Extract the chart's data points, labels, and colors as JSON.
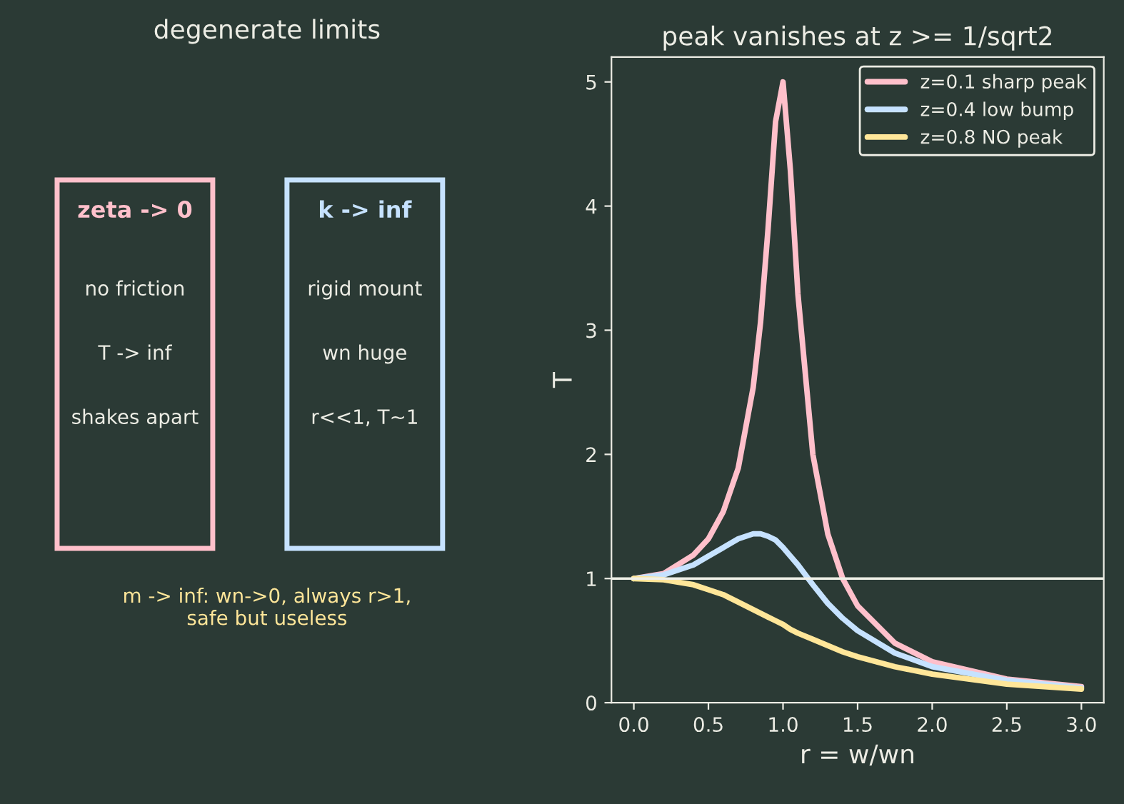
{
  "chart_data": [
    {
      "type": "other",
      "title": "degenerate limits",
      "annotations": [
        "zeta -> 0",
        "no friction",
        "T -> inf",
        "shakes apart",
        "k -> inf",
        "rigid mount",
        "wn huge",
        "r<<1, T~1",
        "m -> inf: wn->0, always r>1,\nsafe but useless"
      ],
      "colors": [
        "#ffc0cb",
        "#c6e2ff",
        "#ffe699"
      ]
    },
    {
      "type": "line",
      "title": "peak vanishes at z >= 1/sqrt2",
      "xlabel": "r = w/wn",
      "ylabel": "T",
      "x": [
        0,
        0.2,
        0.4,
        0.5,
        0.6,
        0.7,
        0.8,
        0.85,
        0.9,
        0.95,
        1.0,
        1.05,
        1.1,
        1.2,
        1.3,
        1.4,
        1.5,
        1.75,
        2.0,
        2.5,
        3.0
      ],
      "series": [
        {
          "name": "z=0.1 sharp peak",
          "color": "#ffc0cb",
          "values": [
            1,
            1.04,
            1.19,
            1.32,
            1.54,
            1.89,
            2.54,
            3.07,
            3.82,
            4.68,
            5.0,
            4.28,
            3.29,
            2.0,
            1.36,
            1.0,
            0.78,
            0.48,
            0.33,
            0.19,
            0.13
          ]
        },
        {
          "name": "z=0.4 low bump",
          "color": "#c6e2ff",
          "values": [
            1,
            1.03,
            1.11,
            1.18,
            1.25,
            1.32,
            1.36,
            1.36,
            1.34,
            1.31,
            1.25,
            1.18,
            1.11,
            0.95,
            0.8,
            0.68,
            0.58,
            0.4,
            0.29,
            0.18,
            0.12
          ]
        },
        {
          "name": "z=0.8 NO peak",
          "color": "#ffe699",
          "values": [
            1,
            0.99,
            0.95,
            0.91,
            0.87,
            0.81,
            0.75,
            0.72,
            0.69,
            0.66,
            0.63,
            0.59,
            0.56,
            0.51,
            0.46,
            0.41,
            0.37,
            0.29,
            0.23,
            0.15,
            0.11
          ]
        }
      ],
      "xlim": [
        -0.15,
        3.15
      ],
      "ylim": [
        0,
        5.2
      ],
      "xticks": [
        {
          "value": 0,
          "label": "0.0"
        },
        {
          "value": 0.5,
          "label": "0.5"
        },
        {
          "value": 1,
          "label": "1.0"
        },
        {
          "value": 1.5,
          "label": "1.5"
        },
        {
          "value": 2,
          "label": "2.0"
        },
        {
          "value": 2.5,
          "label": "2.5"
        },
        {
          "value": 3,
          "label": "3.0"
        }
      ],
      "yticks": [
        0,
        1,
        2,
        3,
        4,
        5
      ],
      "ref_lines": [
        {
          "axis": "y",
          "value": 1,
          "color": "#f0f0e8"
        }
      ],
      "legend": "top right",
      "grid": false
    }
  ]
}
